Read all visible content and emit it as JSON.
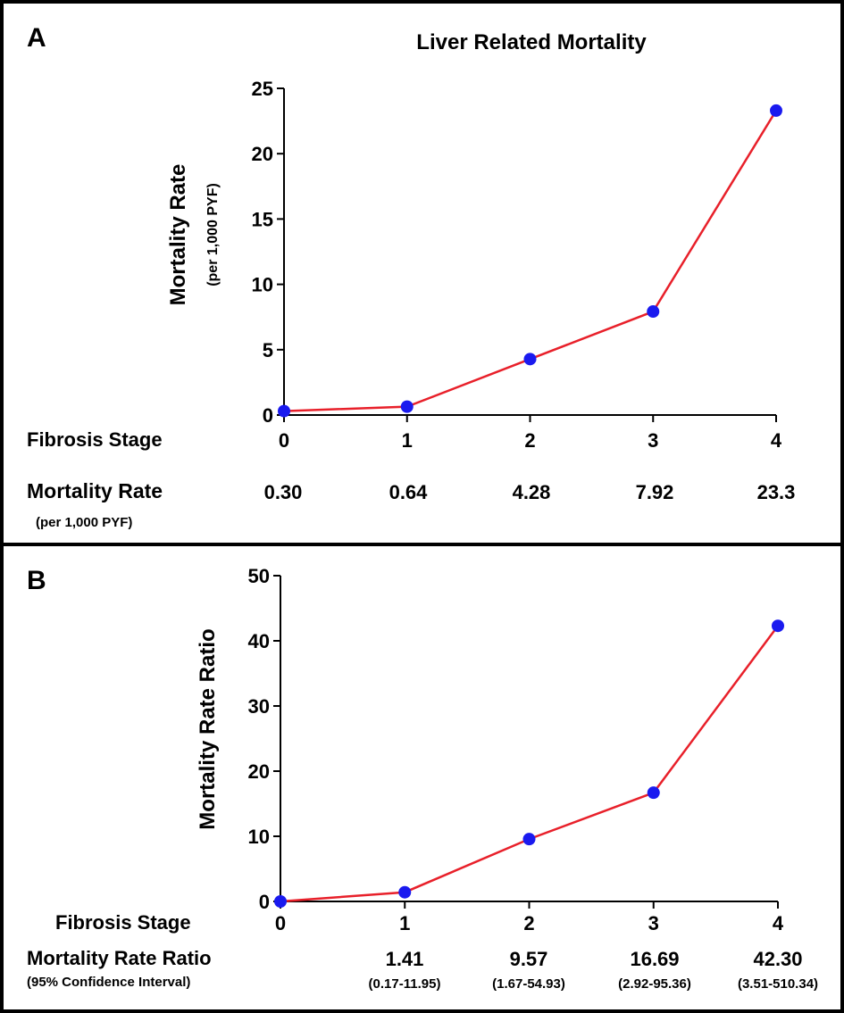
{
  "chart_data": [
    {
      "type": "line",
      "panel": "A",
      "title": "Liver  Related Mortality",
      "ylabel": "Mortality  Rate",
      "ylabel_sub": "(per 1,000 PYF)",
      "ylim": [
        0,
        25
      ],
      "yticks": [
        "0",
        "5",
        "10",
        "15",
        "20",
        "25"
      ],
      "ytick_values": [
        0,
        5,
        10,
        15,
        20,
        25
      ],
      "x": [
        0,
        1,
        2,
        3,
        4
      ],
      "xticks": [
        "0",
        "1",
        "2",
        "3",
        "4"
      ],
      "values": [
        0.3,
        0.64,
        4.28,
        7.92,
        23.3
      ],
      "line_color": "#e8202a",
      "marker_color": "#1a1aef",
      "table": {
        "row1_label": "Fibrosis Stage",
        "row2_label": "Mortality  Rate",
        "row2_sub": "(per 1,000 PYF)",
        "values": [
          "0.30",
          "0.64",
          "4.28",
          "7.92",
          "23.3"
        ]
      }
    },
    {
      "type": "line",
      "panel": "B",
      "ylabel": "Mortality  Rate Ratio",
      "ylim": [
        0,
        50
      ],
      "yticks": [
        "0",
        "10",
        "20",
        "30",
        "40",
        "50"
      ],
      "ytick_values": [
        0,
        10,
        20,
        30,
        40,
        50
      ],
      "x": [
        0,
        1,
        2,
        3,
        4
      ],
      "xticks": [
        "0",
        "1",
        "2",
        "3",
        "4"
      ],
      "values": [
        0,
        1.41,
        9.57,
        16.69,
        42.3
      ],
      "line_color": "#e8202a",
      "marker_color": "#1a1aef",
      "table": {
        "row1_label": "Fibrosis Stage",
        "row2_label": "Mortality  Rate Ratio",
        "row2_sub": "(95% Confidence  Interval)",
        "values": [
          "",
          "1.41",
          "9.57",
          "16.69",
          "42.30"
        ],
        "ci": [
          "",
          "(0.17-11.95)",
          "(1.67-54.93)",
          "(2.92-95.36)",
          "(3.51-510.34)"
        ]
      }
    }
  ]
}
